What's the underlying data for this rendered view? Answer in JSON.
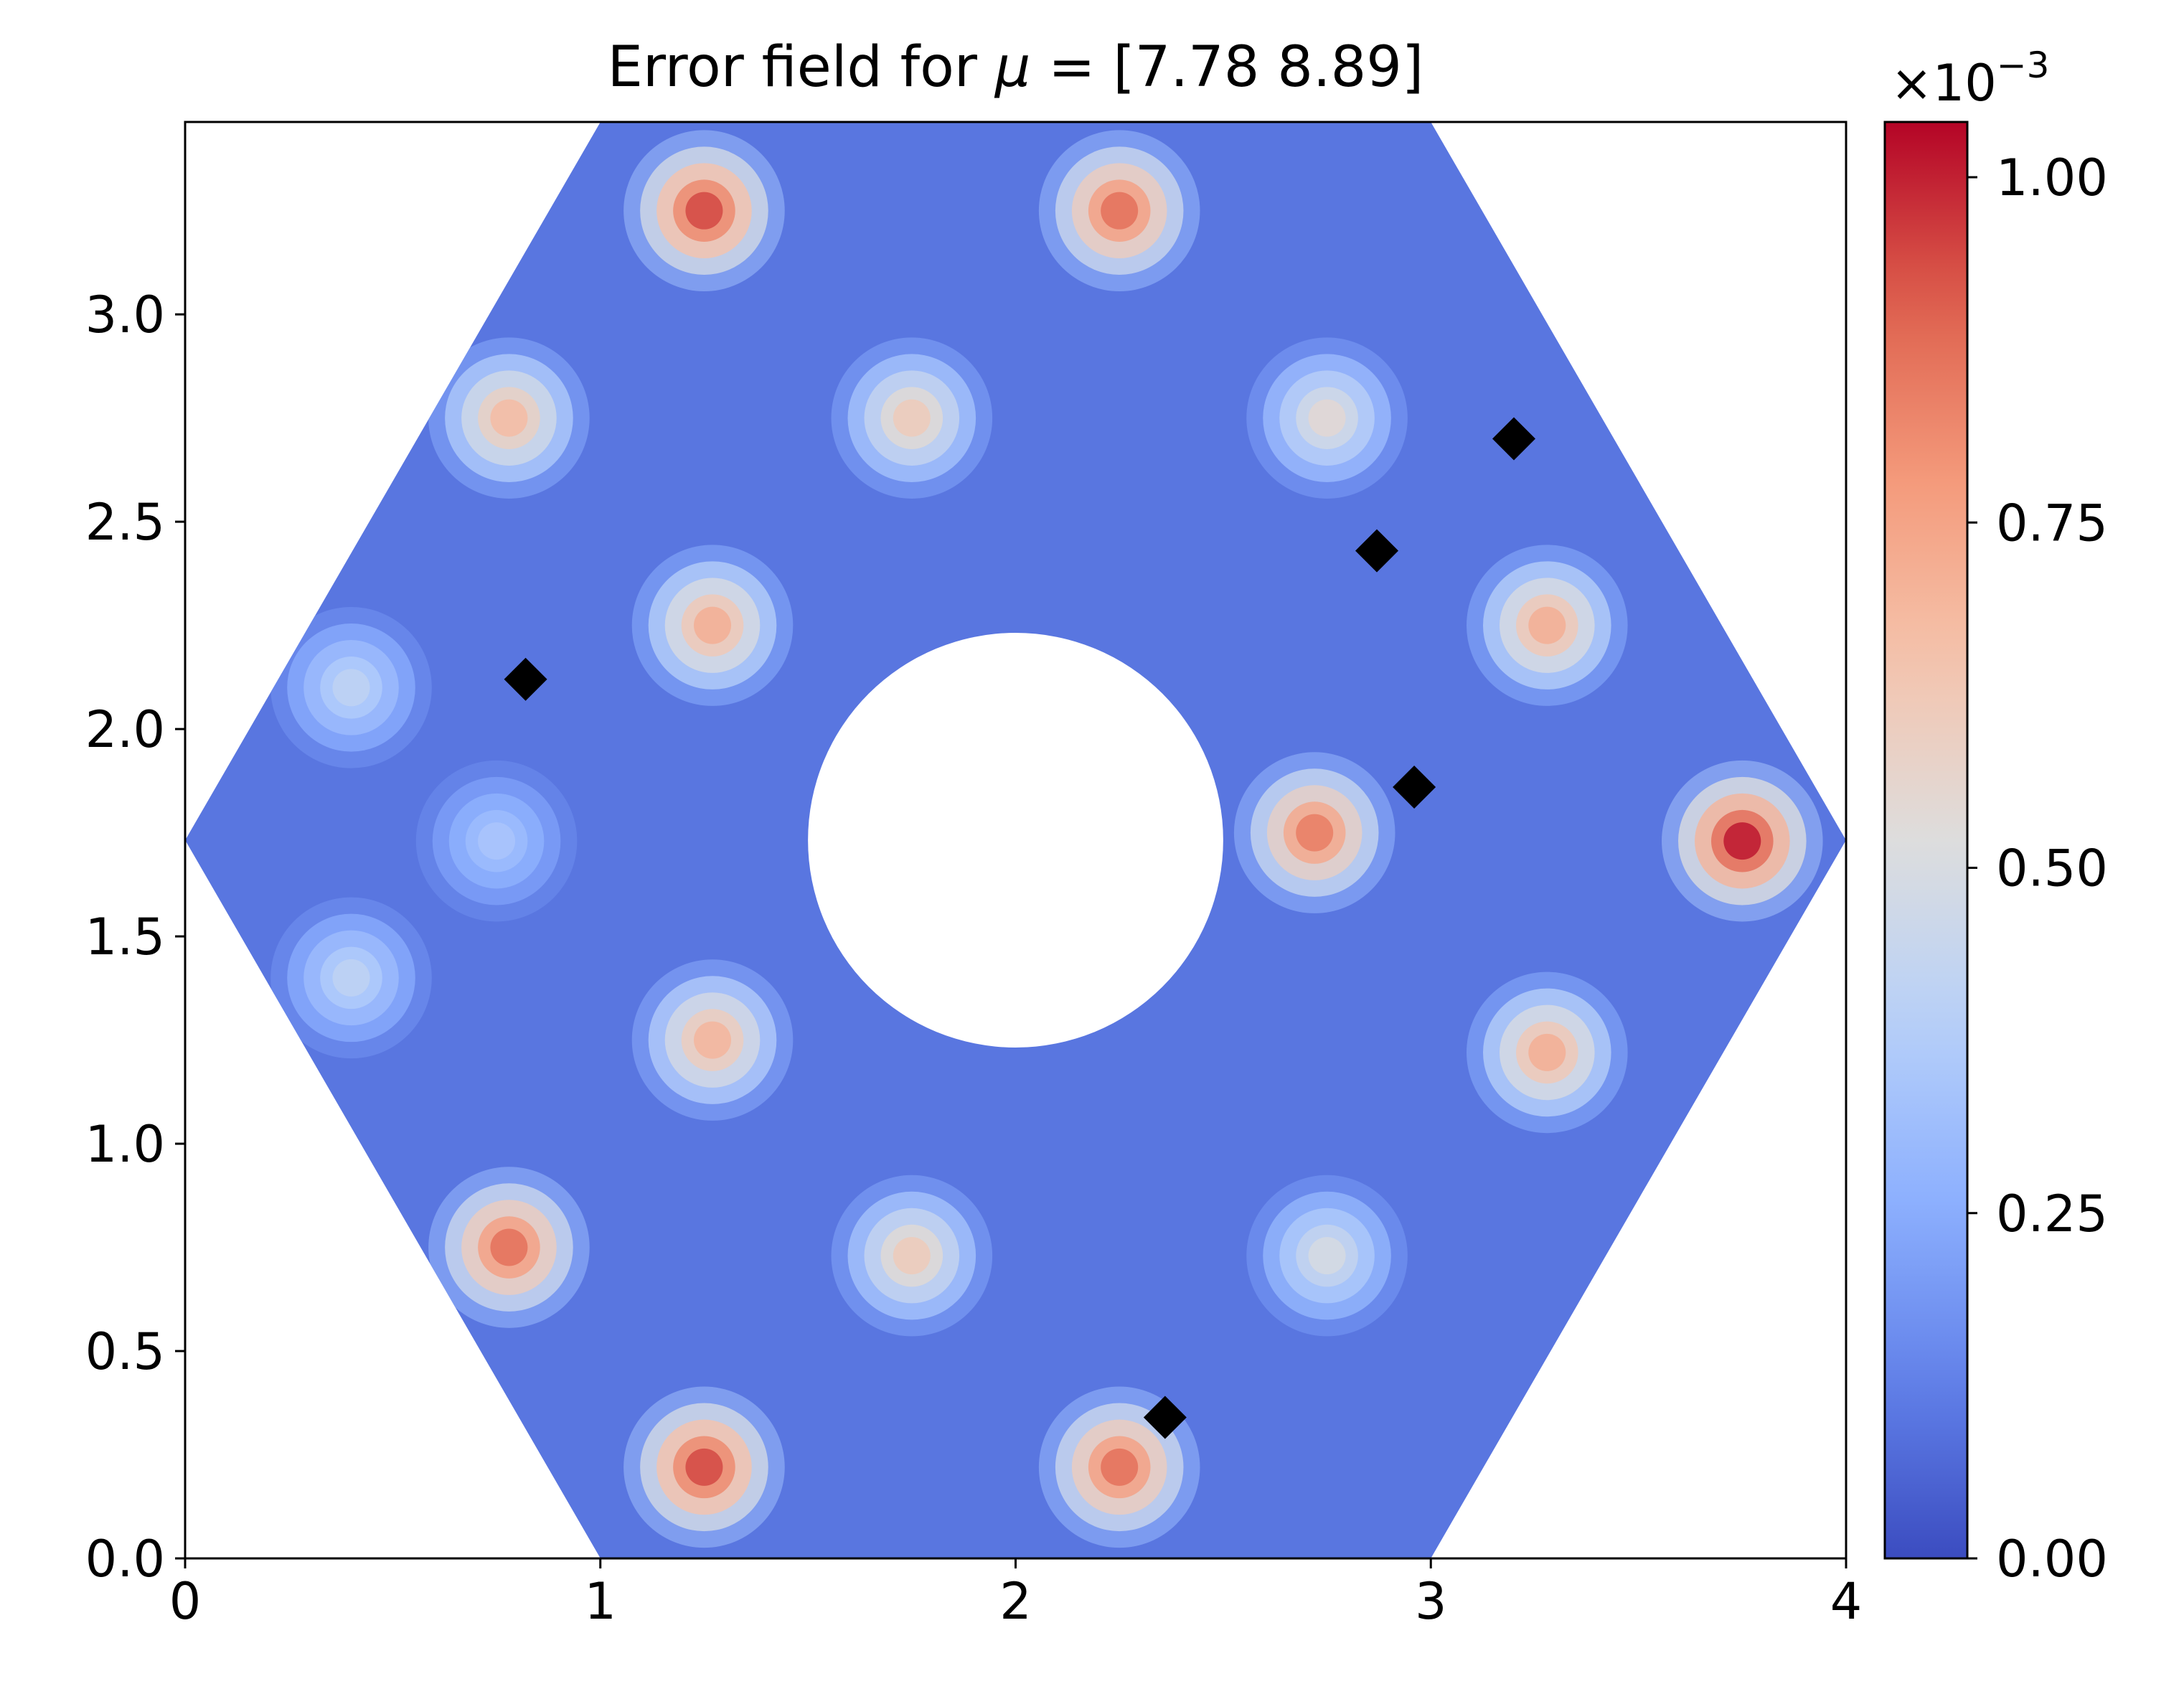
{
  "chart_data": {
    "type": "heatmap",
    "title": "Error field for μ = [7.78 8.89]",
    "title_parts": {
      "prefix": "Error field for ",
      "symbol": "μ",
      "suffix": " = [7.78 8.89]"
    },
    "xlabel": "",
    "ylabel": "",
    "xlim": [
      0,
      4
    ],
    "ylim": [
      0,
      3.464
    ],
    "x_ticks": [
      0,
      1,
      2,
      3,
      4
    ],
    "x_tick_labels": [
      "0",
      "1",
      "2",
      "3",
      "4"
    ],
    "y_ticks": [
      0.0,
      0.5,
      1.0,
      1.5,
      2.0,
      2.5,
      3.0
    ],
    "y_tick_labels": [
      "0.0",
      "0.5",
      "1.0",
      "1.5",
      "2.0",
      "2.5",
      "3.0"
    ],
    "grid": false,
    "colormap": "coolwarm",
    "colors": {
      "low": "#3b4cc0",
      "mid": "#dddddd",
      "high": "#b40426"
    },
    "colorbar": {
      "range": [
        0.0,
        1.04
      ],
      "ticks": [
        0.0,
        0.25,
        0.5,
        0.75,
        1.0
      ],
      "tick_labels": [
        "0.00",
        "0.25",
        "0.50",
        "0.75",
        "1.00"
      ],
      "multiplier_base": "×10",
      "multiplier_exp": "−3"
    },
    "domain": {
      "shape": "hexagon with circular hole",
      "hexagon_vertices": [
        [
          0,
          1.732
        ],
        [
          1,
          0
        ],
        [
          3,
          0
        ],
        [
          4,
          1.732
        ],
        [
          3,
          3.464
        ],
        [
          1,
          3.464
        ]
      ],
      "hole_center": [
        2,
        1.732
      ],
      "hole_radius": 0.5
    },
    "background_level": 0.1,
    "hotspots": [
      {
        "x": 1.25,
        "y": 3.25,
        "value": 0.95
      },
      {
        "x": 2.25,
        "y": 3.25,
        "value": 0.88
      },
      {
        "x": 0.78,
        "y": 2.75,
        "value": 0.68
      },
      {
        "x": 1.75,
        "y": 2.75,
        "value": 0.62
      },
      {
        "x": 2.75,
        "y": 2.75,
        "value": 0.55
      },
      {
        "x": 1.27,
        "y": 2.25,
        "value": 0.72
      },
      {
        "x": 3.28,
        "y": 2.25,
        "value": 0.72
      },
      {
        "x": 0.75,
        "y": 1.73,
        "value": 0.35
      },
      {
        "x": 2.72,
        "y": 1.75,
        "value": 0.85
      },
      {
        "x": 3.75,
        "y": 1.73,
        "value": 1.02
      },
      {
        "x": 1.27,
        "y": 1.25,
        "value": 0.7
      },
      {
        "x": 3.28,
        "y": 1.22,
        "value": 0.72
      },
      {
        "x": 0.78,
        "y": 0.75,
        "value": 0.88
      },
      {
        "x": 1.75,
        "y": 0.73,
        "value": 0.62
      },
      {
        "x": 2.75,
        "y": 0.73,
        "value": 0.5
      },
      {
        "x": 1.25,
        "y": 0.22,
        "value": 0.95
      },
      {
        "x": 2.25,
        "y": 0.22,
        "value": 0.88
      },
      {
        "x": 0.4,
        "y": 2.1,
        "value": 0.42
      },
      {
        "x": 0.4,
        "y": 1.4,
        "value": 0.42
      }
    ],
    "markers": {
      "shape": "diamond",
      "color": "#000000",
      "points": [
        {
          "x": 0.82,
          "y": 2.12
        },
        {
          "x": 2.87,
          "y": 2.43
        },
        {
          "x": 3.2,
          "y": 2.7
        },
        {
          "x": 2.96,
          "y": 1.86
        },
        {
          "x": 2.36,
          "y": 0.34
        }
      ]
    }
  }
}
